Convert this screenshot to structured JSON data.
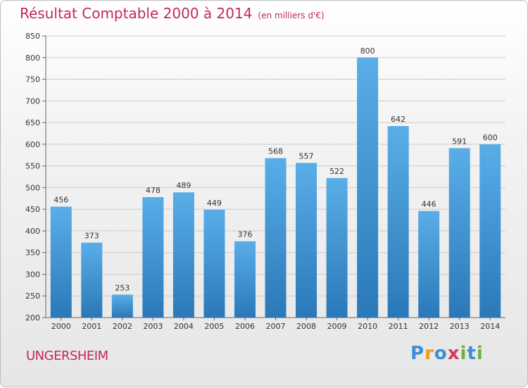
{
  "title": "Résultat Comptable 2000 à 2014",
  "subtitle": "(en milliers d'€)",
  "town": "UNGERSHEIM",
  "logo": {
    "text": "Proxiti",
    "letters": [
      "P",
      "r",
      "o",
      "x",
      "i",
      "t",
      "i"
    ],
    "colors": [
      "#3a8fd8",
      "#f39c12",
      "#3a8fd8",
      "#d63a5e",
      "#6cb33f",
      "#3a8fd8",
      "#6cb33f"
    ]
  },
  "colors": {
    "title": "#c5285a",
    "bar_top": "#5aaee8",
    "bar_bottom": "#2a78b8",
    "grid": "#cccccc"
  },
  "chart_data": {
    "type": "bar",
    "title": "Résultat Comptable 2000 à 2014",
    "subtitle": "(en milliers d'€)",
    "categories": [
      "2000",
      "2001",
      "2002",
      "2003",
      "2004",
      "2005",
      "2006",
      "2007",
      "2008",
      "2009",
      "2010",
      "2011",
      "2012",
      "2013",
      "2014"
    ],
    "values": [
      456,
      373,
      253,
      478,
      489,
      449,
      376,
      568,
      557,
      522,
      800,
      642,
      446,
      591,
      600
    ],
    "ylim": [
      200,
      850
    ],
    "yticks": [
      200,
      250,
      300,
      350,
      400,
      450,
      500,
      550,
      600,
      650,
      700,
      750,
      800,
      850
    ],
    "grid": true,
    "data_labels": true
  }
}
